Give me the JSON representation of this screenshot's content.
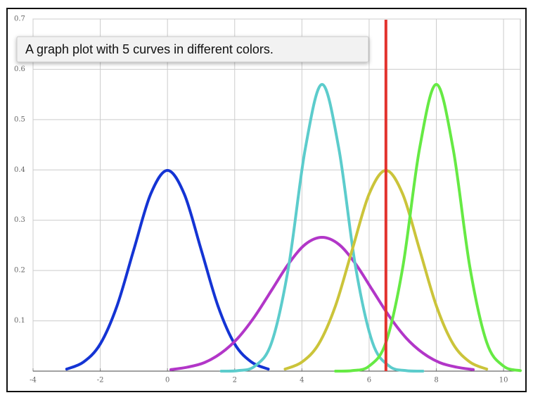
{
  "chart_data": {
    "type": "line",
    "xlim": [
      -4,
      10.5
    ],
    "ylim": [
      0,
      0.7
    ],
    "xticks": [
      -4,
      -2,
      0,
      2,
      4,
      6,
      8,
      10
    ],
    "yticks": [
      0.1,
      0.2,
      0.3,
      0.4,
      0.5,
      0.6,
      0.7
    ],
    "grid": true,
    "series": [
      {
        "color": "#1434d4",
        "x": [
          -3,
          -2.5,
          -2,
          -1.5,
          -1,
          -0.5,
          0,
          0.5,
          1,
          1.5,
          2,
          2.5,
          3
        ],
        "values": [
          0.004,
          0.018,
          0.054,
          0.13,
          0.242,
          0.352,
          0.399,
          0.352,
          0.242,
          0.13,
          0.054,
          0.018,
          0.004
        ]
      },
      {
        "color": "#b236c8",
        "x": [
          0.1,
          0.6,
          1.1,
          1.6,
          2.1,
          2.6,
          3.1,
          3.6,
          4.1,
          4.6,
          5.1,
          5.6,
          6.1,
          6.6,
          7.1,
          7.6,
          8.1,
          8.6,
          9.1
        ],
        "values": [
          0.003,
          0.008,
          0.017,
          0.036,
          0.066,
          0.109,
          0.161,
          0.213,
          0.252,
          0.266,
          0.252,
          0.213,
          0.161,
          0.109,
          0.066,
          0.036,
          0.017,
          0.008,
          0.003
        ]
      },
      {
        "color": "#5ccccc",
        "x": [
          1.6,
          2.1,
          2.6,
          3.1,
          3.6,
          4.1,
          4.6,
          5.1,
          5.6,
          6.1,
          6.6,
          7.1,
          7.6
        ],
        "values": [
          0.0,
          0.001,
          0.01,
          0.057,
          0.206,
          0.442,
          0.57,
          0.442,
          0.206,
          0.057,
          0.01,
          0.001,
          0.0
        ]
      },
      {
        "color": "#cbc43a",
        "x": [
          3.5,
          4,
          4.5,
          5,
          5.5,
          6,
          6.5,
          7,
          7.5,
          8,
          8.5,
          9,
          9.5
        ],
        "values": [
          0.004,
          0.018,
          0.054,
          0.13,
          0.242,
          0.352,
          0.399,
          0.352,
          0.242,
          0.13,
          0.054,
          0.018,
          0.004
        ]
      },
      {
        "color": "#66ea44",
        "x": [
          5,
          5.5,
          6,
          6.5,
          7,
          7.5,
          8,
          8.5,
          9,
          9.5,
          10,
          10.5
        ],
        "values": [
          0.0,
          0.001,
          0.01,
          0.057,
          0.206,
          0.442,
          0.57,
          0.442,
          0.206,
          0.057,
          0.01,
          0.001
        ]
      }
    ],
    "vlines": [
      {
        "x": 6.5,
        "color": "#e2332e"
      }
    ]
  },
  "tooltip": {
    "text": "A graph plot with 5 curves in different colors."
  }
}
